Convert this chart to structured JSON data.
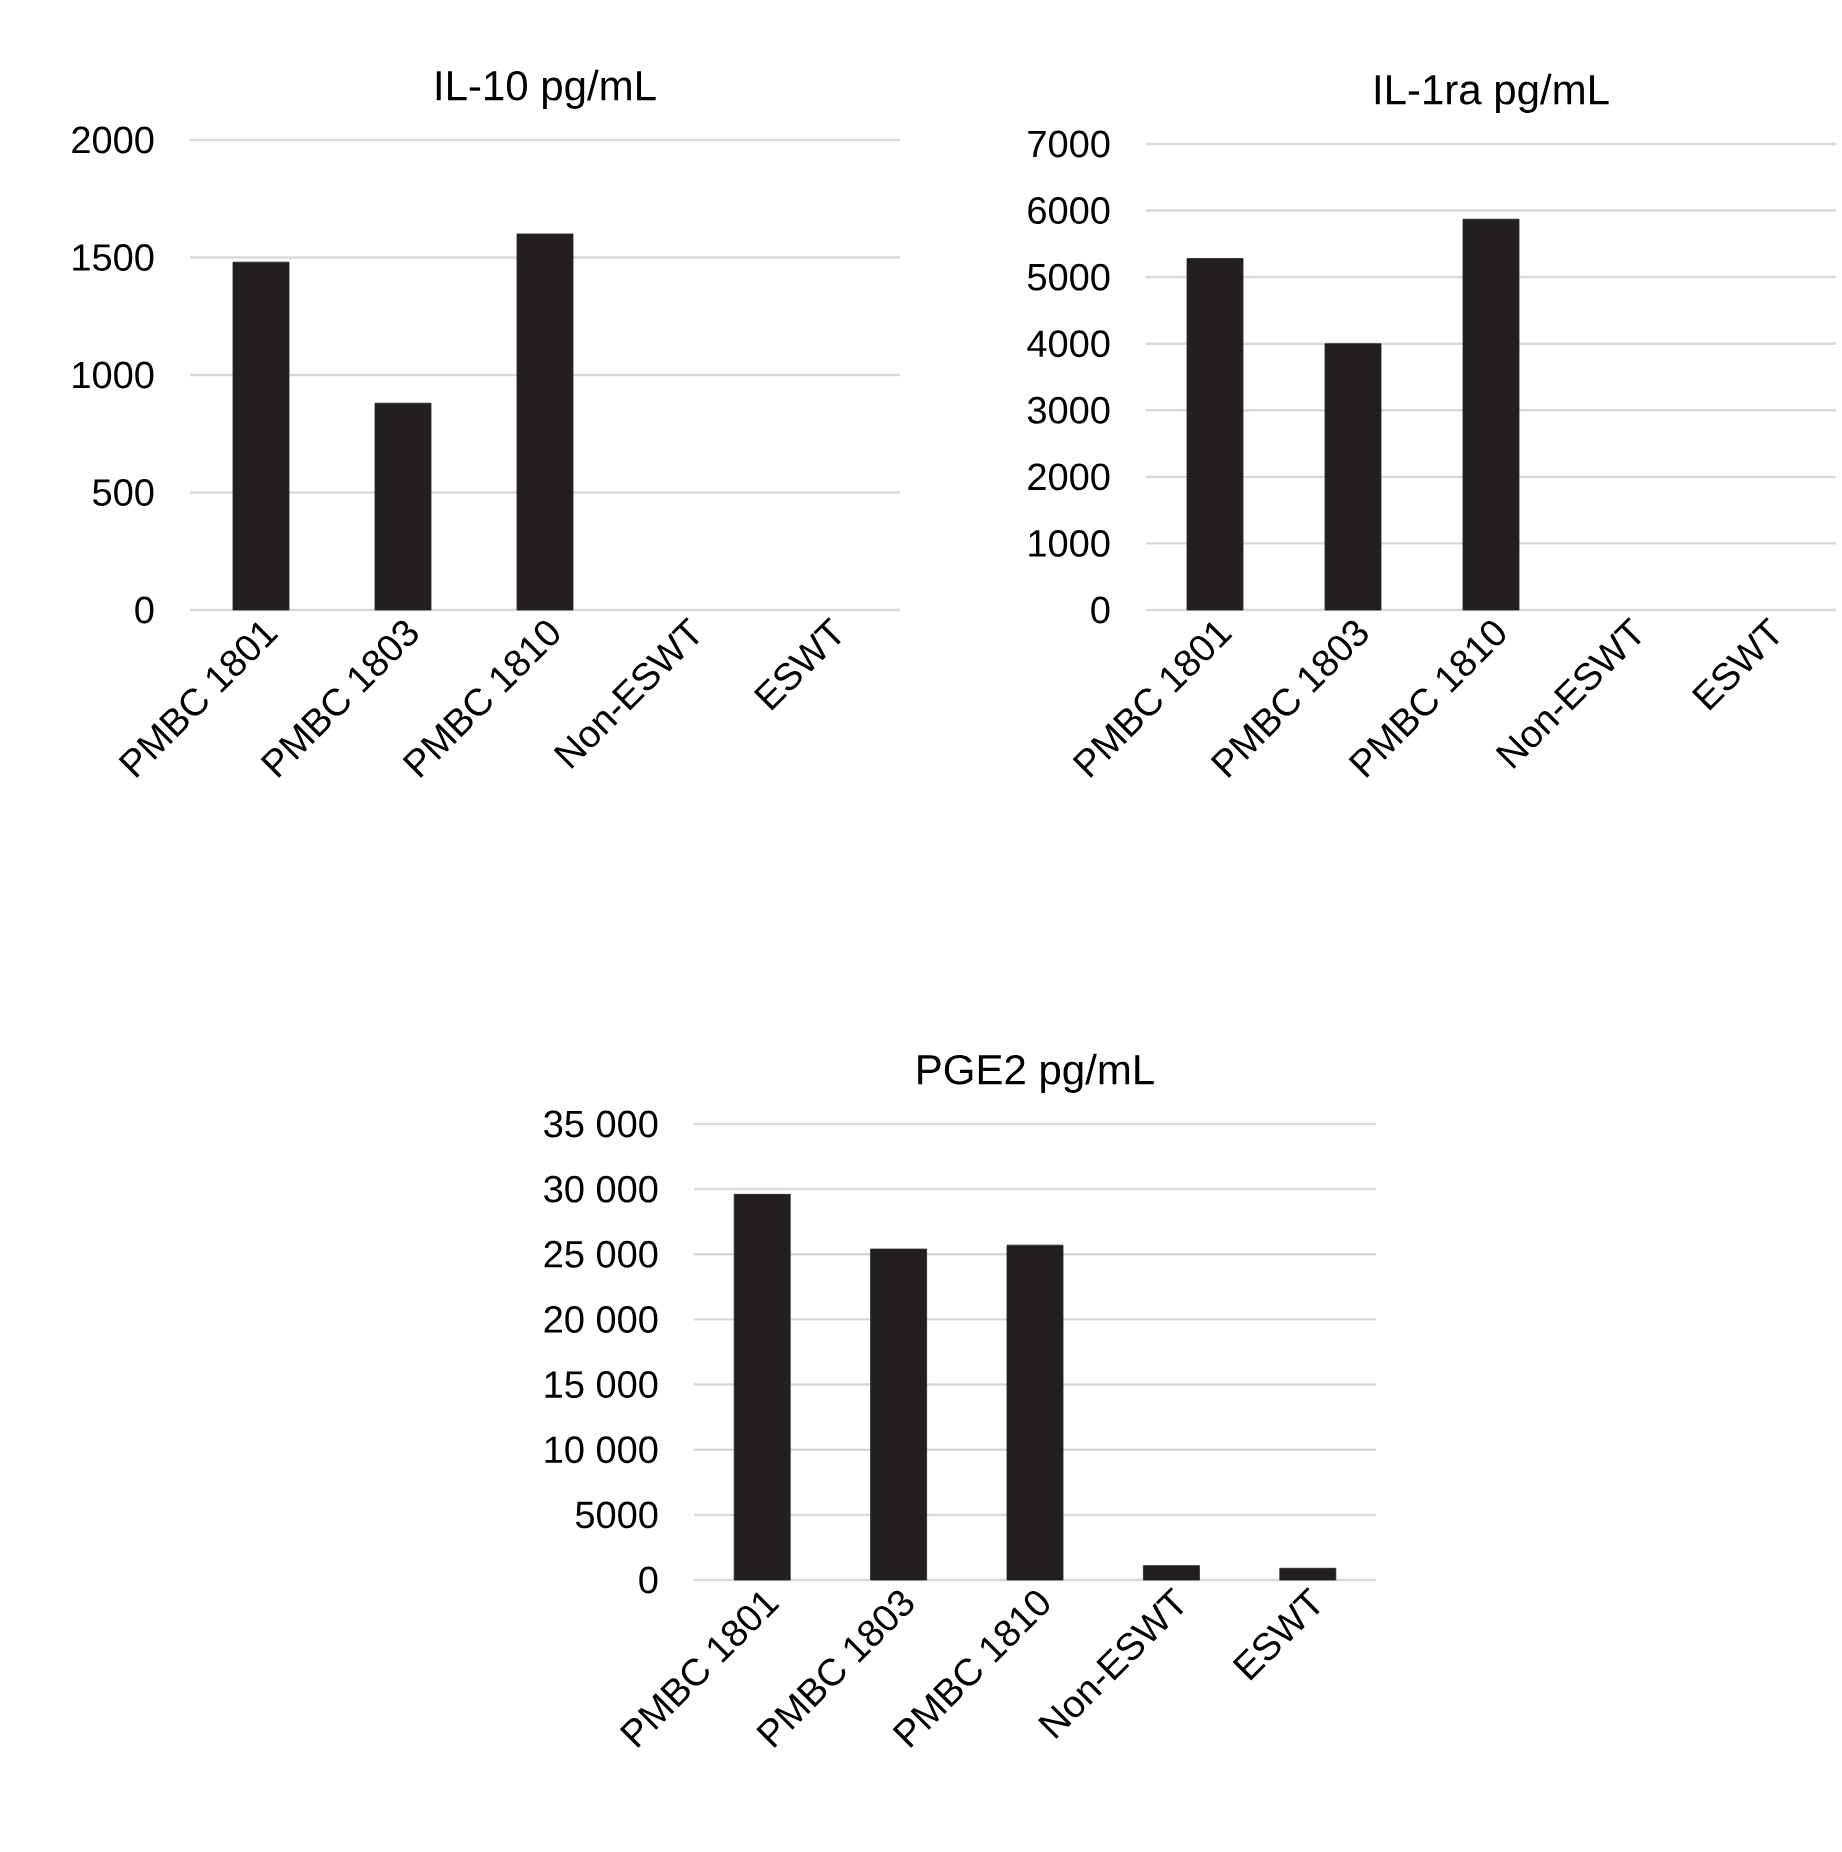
{
  "chart_data": [
    {
      "type": "bar",
      "title": "IL-10 pg/mL",
      "categories": [
        "PMBC 1801",
        "PMBC  1803",
        "PMBC  1810",
        "Non-ESWT",
        "ESWT"
      ],
      "values": [
        1480,
        880,
        1600,
        null,
        null
      ],
      "color": "#231f20",
      "ylim": [
        0,
        2000
      ],
      "yticks": [
        0,
        500,
        1000,
        1500,
        2000
      ],
      "grid": "y"
    },
    {
      "type": "bar",
      "title": "IL-1ra pg/mL",
      "categories": [
        "PMBC 1801",
        "PMBC  1803",
        "PMBC  1810",
        "Non-ESWT",
        "ESWT"
      ],
      "values": [
        5280,
        4000,
        5870,
        null,
        null
      ],
      "color": "#231f20",
      "ylim": [
        0,
        7000
      ],
      "yticks": [
        0,
        1000,
        2000,
        3000,
        4000,
        5000,
        6000,
        7000
      ],
      "grid": "y"
    },
    {
      "type": "bar",
      "title": "PGE2 pg/mL",
      "categories": [
        "PMBC 1801",
        "PMBC  1803",
        "PMBC  1810",
        "Non-ESWT",
        "ESWT"
      ],
      "values": [
        29600,
        25400,
        25700,
        1100,
        900
      ],
      "color": "#231f20",
      "ylim": [
        0,
        35000
      ],
      "yticks": [
        0,
        5000,
        {
          "value": 10000,
          "label": "10 000"
        },
        {
          "value": 15000,
          "label": "15 000"
        },
        {
          "value": 20000,
          "label": "20 000"
        },
        {
          "value": 25000,
          "label": "25 000"
        },
        {
          "value": 30000,
          "label": "30 000"
        },
        {
          "value": 35000,
          "label": "35 000"
        }
      ],
      "grid": "y"
    }
  ]
}
